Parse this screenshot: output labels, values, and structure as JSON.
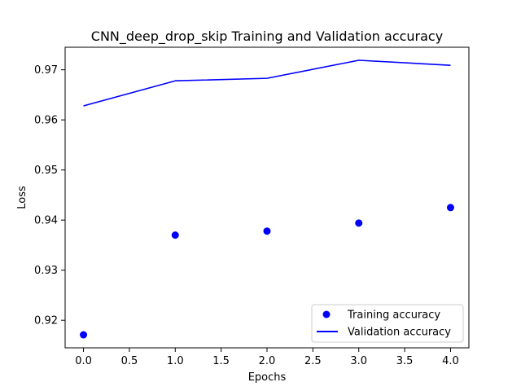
{
  "chart_data": {
    "type": "line",
    "title": "CNN_deep_drop_skip Training and Validation accuracy",
    "xlabel": "Epochs",
    "ylabel": "Loss",
    "xlim": [
      -0.2,
      4.2
    ],
    "ylim": [
      0.9145,
      0.9745
    ],
    "xticks": [
      0.0,
      0.5,
      1.0,
      1.5,
      2.0,
      2.5,
      3.0,
      3.5,
      4.0
    ],
    "xtick_labels": [
      "0.0",
      "0.5",
      "1.0",
      "1.5",
      "2.0",
      "2.5",
      "3.0",
      "3.5",
      "4.0"
    ],
    "yticks": [
      0.92,
      0.93,
      0.94,
      0.95,
      0.96,
      0.97
    ],
    "ytick_labels": [
      "0.92",
      "0.93",
      "0.94",
      "0.95",
      "0.96",
      "0.97"
    ],
    "grid": false,
    "legend_position": "lower-right",
    "series": [
      {
        "name": "Training accuracy",
        "style": "points",
        "color": "#0000ff",
        "x": [
          0,
          1,
          2,
          3,
          4
        ],
        "values": [
          0.9171,
          0.937,
          0.9378,
          0.9394,
          0.9425
        ]
      },
      {
        "name": "Validation accuracy",
        "style": "line",
        "color": "#0000ff",
        "x": [
          0,
          1,
          2,
          3,
          4
        ],
        "values": [
          0.9628,
          0.9678,
          0.9683,
          0.9719,
          0.9709
        ]
      }
    ]
  }
}
